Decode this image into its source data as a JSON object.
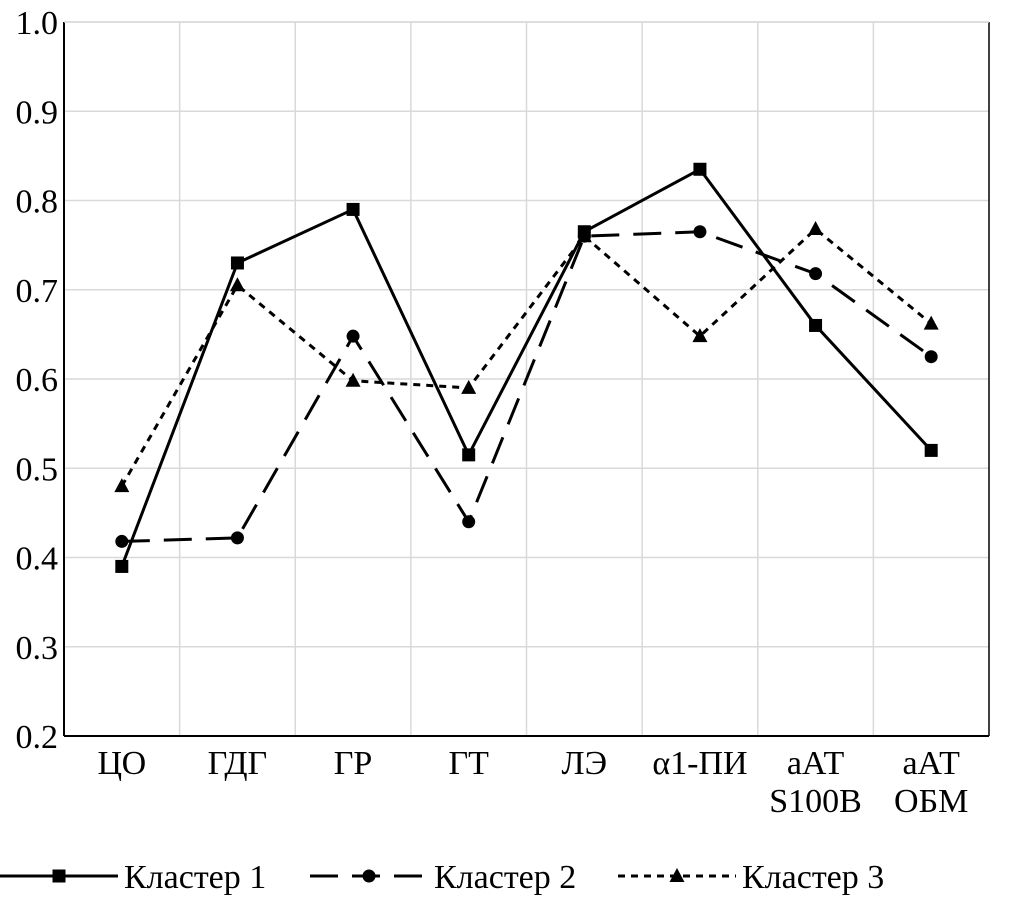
{
  "chart_data": {
    "type": "line",
    "categories": [
      [
        "ЦО"
      ],
      [
        "ГДГ"
      ],
      [
        "ГР"
      ],
      [
        "ГТ"
      ],
      [
        "ЛЭ"
      ],
      [
        "α1-ПИ"
      ],
      [
        "аАТ",
        "S100B"
      ],
      [
        "аАТ",
        "ОБМ"
      ]
    ],
    "ylim": [
      0.2,
      1.0
    ],
    "yticks": [
      "0.2",
      "0.3",
      "0.4",
      "0.5",
      "0.6",
      "0.7",
      "0.8",
      "0.9",
      "1.0"
    ],
    "grid": true,
    "legend_position": "bottom",
    "series": [
      {
        "name": "Кластер 1",
        "marker": "square",
        "dash": "solid",
        "values": [
          0.39,
          0.73,
          0.79,
          0.515,
          0.765,
          0.835,
          0.66,
          0.52
        ]
      },
      {
        "name": "Кластер 2",
        "marker": "circle",
        "dash": "long-dash",
        "values": [
          0.418,
          0.422,
          0.648,
          0.44,
          0.76,
          0.765,
          0.718,
          0.625
        ]
      },
      {
        "name": "Кластер 3",
        "marker": "triangle",
        "dash": "short-dash",
        "values": [
          0.48,
          0.705,
          0.598,
          0.59,
          0.76,
          0.648,
          0.768,
          0.662
        ]
      }
    ]
  }
}
